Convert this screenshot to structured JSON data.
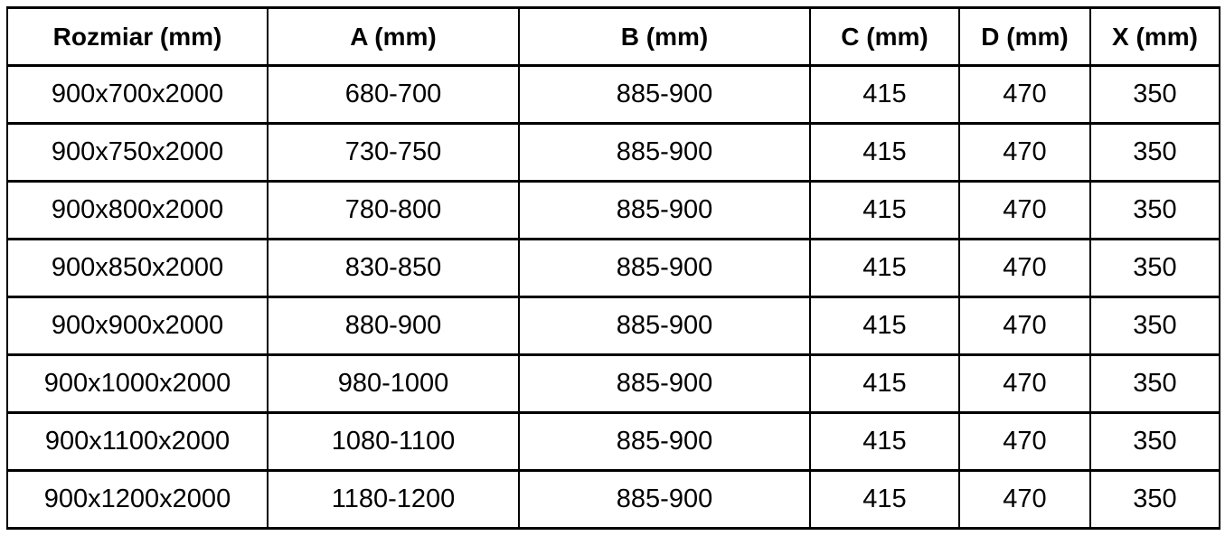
{
  "chart_data": {
    "type": "table",
    "columns": [
      "Rozmiar (mm)",
      "A (mm)",
      "B (mm)",
      "C (mm)",
      "D (mm)",
      "X (mm)"
    ],
    "rows": [
      [
        "900x700x2000",
        "680-700",
        "885-900",
        "415",
        "470",
        "350"
      ],
      [
        "900x750x2000",
        "730-750",
        "885-900",
        "415",
        "470",
        "350"
      ],
      [
        "900x800x2000",
        "780-800",
        "885-900",
        "415",
        "470",
        "350"
      ],
      [
        "900x850x2000",
        "830-850",
        "885-900",
        "415",
        "470",
        "350"
      ],
      [
        "900x900x2000",
        "880-900",
        "885-900",
        "415",
        "470",
        "350"
      ],
      [
        "900x1000x2000",
        "980-1000",
        "885-900",
        "415",
        "470",
        "350"
      ],
      [
        "900x1100x2000",
        "1080-1100",
        "885-900",
        "415",
        "470",
        "350"
      ],
      [
        "900x1200x2000",
        "1180-1200",
        "885-900",
        "415",
        "470",
        "350"
      ]
    ],
    "colors": {
      "border": "#000000",
      "text": "#000000",
      "background": "#ffffff"
    }
  }
}
